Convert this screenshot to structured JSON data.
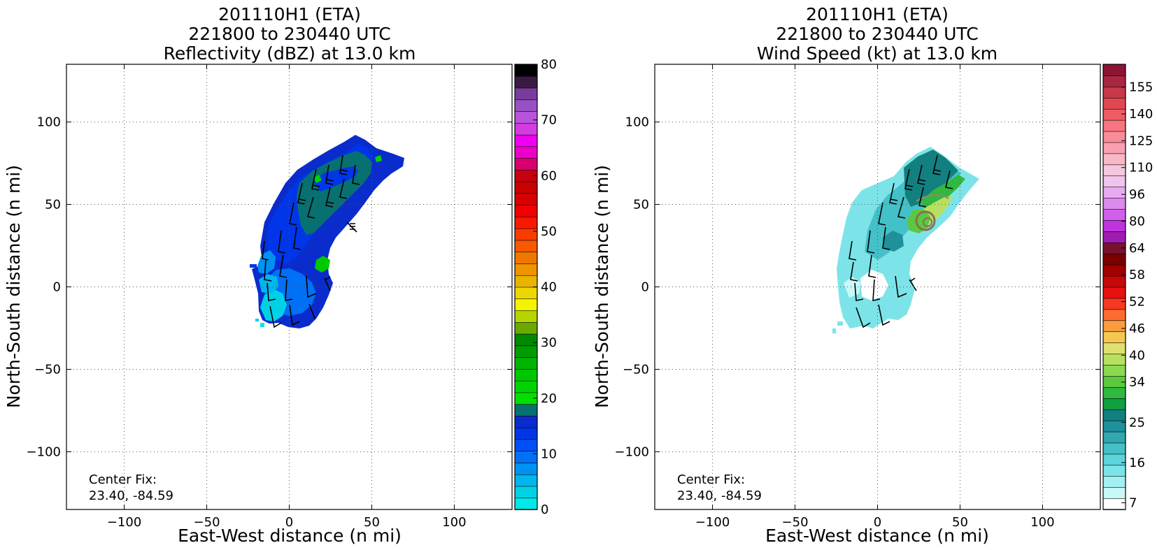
{
  "panels": [
    {
      "title_lines": [
        "201110H1 (ETA)",
        "221800 to 230440 UTC",
        "Reflectivity (dBZ) at 13.0 km"
      ],
      "xlabel": "East-West distance (n mi)",
      "ylabel": "North-South distance (n mi)",
      "center_fix_label": "Center Fix:",
      "center_fix_value": "23.40, -84.59",
      "colorbar": {
        "ticks": [
          "0",
          "10",
          "20",
          "30",
          "40",
          "50",
          "60",
          "70",
          "80"
        ],
        "colors": [
          "#00e8e8",
          "#00d2e6",
          "#00b6ec",
          "#0092f2",
          "#0070f6",
          "#0050f8",
          "#0036e8",
          "#0a2ccc",
          "#087070",
          "#00e000",
          "#00d400",
          "#00c800",
          "#00b400",
          "#009c00",
          "#008800",
          "#6aaa00",
          "#b6d400",
          "#f4f400",
          "#ecd800",
          "#e8b400",
          "#f09400",
          "#f07800",
          "#f85800",
          "#f83c00",
          "#f81800",
          "#f00000",
          "#d80000",
          "#c80000",
          "#c80010",
          "#d8006e",
          "#ec00c8",
          "#f000f0",
          "#d43ce0",
          "#b854dc",
          "#9850c4",
          "#7a3c9c",
          "#3a1a44",
          "#000000"
        ]
      },
      "chart_data": {
        "type": "heatmap",
        "title": "201110H1 (ETA) 221800 to 230440 UTC Reflectivity (dBZ) at 13.0 km",
        "xlabel": "East-West distance (n mi)",
        "ylabel": "North-South distance (n mi)",
        "xlim": [
          -135,
          135
        ],
        "ylim": [
          -135,
          135
        ],
        "xticks": [
          -100,
          -50,
          0,
          50,
          100
        ],
        "yticks": [
          -100,
          -50,
          0,
          50,
          100
        ],
        "grid": true,
        "colorbar_range": [
          0,
          80
        ],
        "units": "dBZ"
      }
    },
    {
      "title_lines": [
        "201110H1 (ETA)",
        "221800 to 230440 UTC",
        "Wind Speed (kt) at 13.0 km"
      ],
      "xlabel": "East-West distance (n mi)",
      "ylabel": "North-South distance (n mi)",
      "center_fix_label": "Center Fix:",
      "center_fix_value": "23.40, -84.59",
      "colorbar": {
        "ticks": [
          "7",
          "16",
          "25",
          "34",
          "40",
          "46",
          "52",
          "58",
          "64",
          "80",
          "96",
          "110",
          "125",
          "140",
          "155"
        ],
        "colors": [
          "#ffffff",
          "#c8f8f8",
          "#a4f0f0",
          "#7ce4e8",
          "#5cd4dc",
          "#44c0c8",
          "#30a8b0",
          "#20909a",
          "#138080",
          "#10a040",
          "#30b840",
          "#5cc840",
          "#8cd850",
          "#b8e060",
          "#e0e070",
          "#f4c850",
          "#f89c40",
          "#fc6c30",
          "#f83820",
          "#e81010",
          "#c80808",
          "#a00000",
          "#7a0000",
          "#7a1030",
          "#a01cb0",
          "#c034e0",
          "#d060ec",
          "#dc8aec",
          "#e8aaf0",
          "#f0c4ec",
          "#f4c8dc",
          "#f8b8c8",
          "#f8a0b0",
          "#f88c98",
          "#f87480",
          "#f05c64",
          "#e04850",
          "#c83848",
          "#a82840",
          "#8e1434"
        ]
      },
      "chart_data": {
        "type": "heatmap",
        "title": "201110H1 (ETA) 221800 to 230440 UTC Wind Speed (kt) at 13.0 km",
        "xlabel": "East-West distance (n mi)",
        "ylabel": "North-South distance (n mi)",
        "xlim": [
          -135,
          135
        ],
        "ylim": [
          -135,
          135
        ],
        "xticks": [
          -100,
          -50,
          0,
          50,
          100
        ],
        "yticks": [
          -100,
          -50,
          0,
          50,
          100
        ],
        "grid": true,
        "colorbar_range": [
          7,
          160
        ],
        "units": "kt"
      }
    }
  ]
}
